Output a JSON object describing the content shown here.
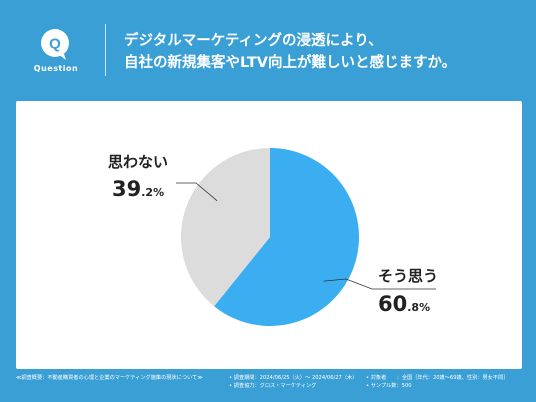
{
  "header": {
    "badge_letter": "Q",
    "badge_label": "Question",
    "question_line1": "デジタルマーケティングの浸透により、",
    "question_line2": "自社の新規集客やLTV向上が難しいと感じますか。"
  },
  "colors": {
    "background": "#3a9fd4",
    "agree": "#3aaef0",
    "disagree": "#dcdcdc",
    "badge": "#ffffff",
    "badge_letter": "#3a9fd4"
  },
  "chart_data": {
    "type": "pie",
    "slices": [
      {
        "label": "そう思う",
        "value": 60.8,
        "value_int": "60",
        "value_dec": ".8%",
        "color": "#3aaef0"
      },
      {
        "label": "思わない",
        "value": 39.2,
        "value_int": "39",
        "value_dec": ".2%",
        "color": "#dcdcdc"
      }
    ],
    "start_angle_deg": 0,
    "direction": "clockwise"
  },
  "footer": {
    "survey_title": "≪調査概要：不動産購買者の心理と企業のマーケティング施策の現状について≫",
    "period": "• 調査期間：2024/06/25（火）〜 2024/06/27（木）",
    "cooperation": "• 調査協力：クロス・マーケティング",
    "target": "• 対象者　　：全国［年代：20歳〜69歳、性別：男女不問］",
    "sample": "• サンプル数：500"
  }
}
